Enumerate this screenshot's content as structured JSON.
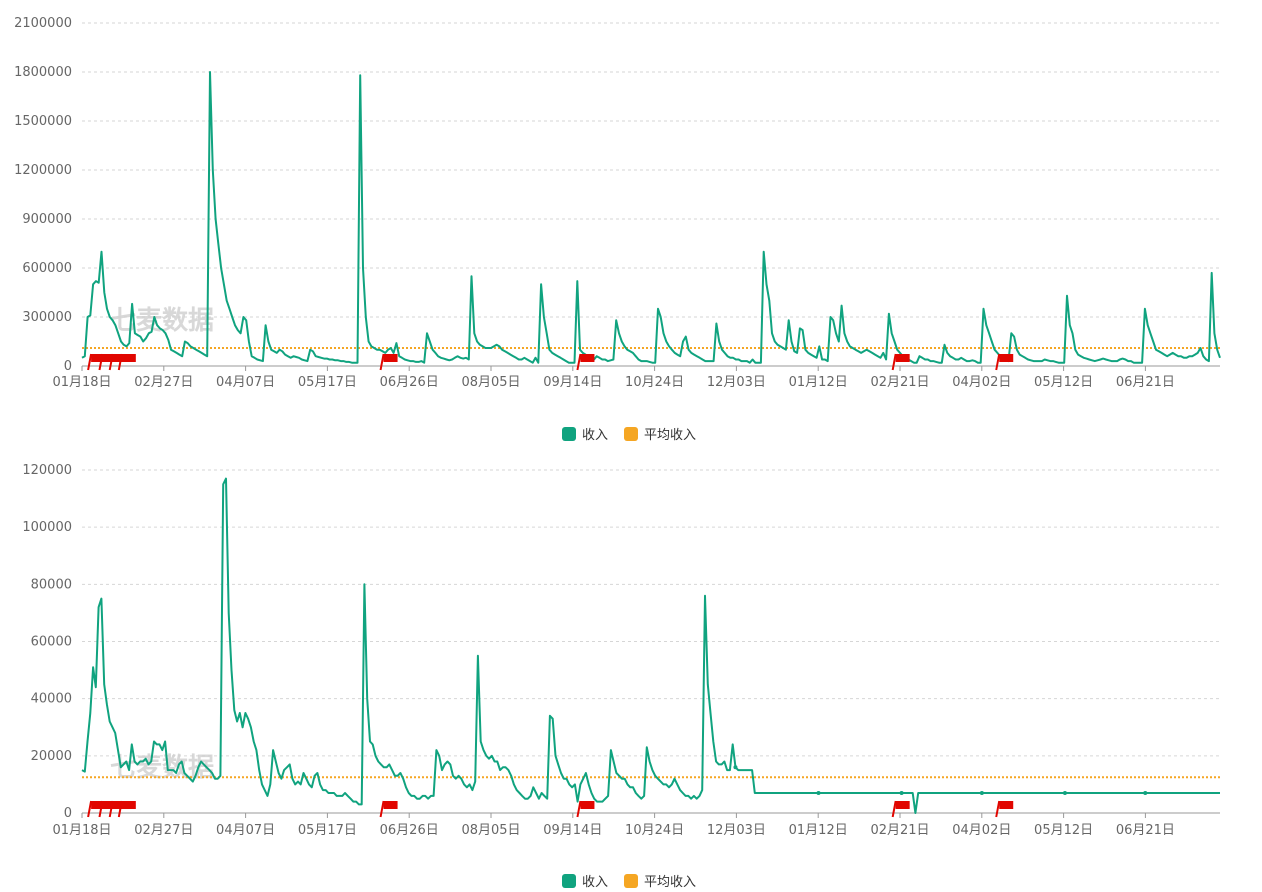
{
  "legend": {
    "income_label": "收入",
    "avg_label": "平均收入",
    "income_color": "#10A37F",
    "avg_color": "#F5A623"
  },
  "watermark": "七麦数据",
  "chart_data": [
    {
      "type": "line",
      "x_ticks": [
        "01月18日",
        "02月27日",
        "04月07日",
        "05月17日",
        "06月26日",
        "08月05日",
        "09月14日",
        "10月24日",
        "12月03日",
        "01月12日",
        "02月21日",
        "04月02日",
        "05月12日",
        "06月21日"
      ],
      "y_ticks": [
        0,
        300000,
        600000,
        900000,
        1200000,
        1500000,
        1800000,
        2100000
      ],
      "ylim": [
        0,
        2100000
      ],
      "series": [
        {
          "name": "收入",
          "values": [
            50000,
            60000,
            300000,
            310000,
            500000,
            520000,
            510000,
            700000,
            450000,
            350000,
            300000,
            280000,
            250000,
            200000,
            150000,
            130000,
            120000,
            140000,
            380000,
            200000,
            190000,
            180000,
            150000,
            170000,
            200000,
            210000,
            300000,
            250000,
            230000,
            220000,
            200000,
            160000,
            100000,
            90000,
            80000,
            70000,
            60000,
            150000,
            140000,
            120000,
            110000,
            100000,
            90000,
            80000,
            70000,
            60000,
            1800000,
            1200000,
            900000,
            750000,
            600000,
            500000,
            400000,
            350000,
            300000,
            250000,
            220000,
            200000,
            300000,
            280000,
            150000,
            60000,
            50000,
            40000,
            35000,
            30000,
            250000,
            150000,
            100000,
            90000,
            80000,
            100000,
            90000,
            70000,
            60000,
            50000,
            60000,
            55000,
            50000,
            40000,
            35000,
            30000,
            100000,
            90000,
            60000,
            55000,
            50000,
            45000,
            45000,
            40000,
            40000,
            35000,
            35000,
            30000,
            30000,
            25000,
            25000,
            20000,
            20000,
            20000,
            1780000,
            600000,
            300000,
            150000,
            120000,
            110000,
            100000,
            100000,
            90000,
            80000,
            100000,
            110000,
            80000,
            140000,
            60000,
            50000,
            40000,
            35000,
            30000,
            30000,
            25000,
            25000,
            30000,
            20000,
            200000,
            150000,
            100000,
            80000,
            60000,
            50000,
            45000,
            40000,
            35000,
            40000,
            50000,
            60000,
            50000,
            45000,
            50000,
            40000,
            550000,
            200000,
            150000,
            130000,
            120000,
            110000,
            110000,
            110000,
            120000,
            130000,
            120000,
            100000,
            90000,
            80000,
            70000,
            60000,
            50000,
            40000,
            40000,
            50000,
            40000,
            30000,
            20000,
            50000,
            20000,
            500000,
            300000,
            200000,
            100000,
            80000,
            70000,
            60000,
            50000,
            40000,
            30000,
            20000,
            20000,
            20000,
            520000,
            100000,
            80000,
            70000,
            60000,
            50000,
            40000,
            60000,
            50000,
            40000,
            40000,
            30000,
            35000,
            40000,
            280000,
            200000,
            150000,
            120000,
            100000,
            90000,
            80000,
            60000,
            40000,
            30000,
            30000,
            30000,
            25000,
            20000,
            20000,
            350000,
            300000,
            200000,
            150000,
            120000,
            100000,
            80000,
            70000,
            60000,
            150000,
            180000,
            100000,
            80000,
            70000,
            60000,
            50000,
            40000,
            30000,
            30000,
            30000,
            30000,
            260000,
            150000,
            100000,
            80000,
            60000,
            50000,
            50000,
            40000,
            40000,
            30000,
            30000,
            30000,
            20000,
            40000,
            20000,
            20000,
            20000,
            700000,
            500000,
            400000,
            200000,
            150000,
            130000,
            120000,
            110000,
            100000,
            280000,
            150000,
            90000,
            80000,
            230000,
            220000,
            100000,
            80000,
            70000,
            60000,
            50000,
            120000,
            40000,
            40000,
            30000,
            300000,
            280000,
            200000,
            150000,
            370000,
            200000,
            150000,
            120000,
            110000,
            100000,
            90000,
            80000,
            90000,
            100000,
            90000,
            80000,
            70000,
            60000,
            50000,
            80000,
            40000,
            320000,
            200000,
            150000,
            100000,
            80000,
            60000,
            50000,
            40000,
            30000,
            20000,
            20000,
            60000,
            50000,
            40000,
            40000,
            30000,
            30000,
            25000,
            20000,
            20000,
            130000,
            80000,
            60000,
            50000,
            40000,
            40000,
            50000,
            40000,
            30000,
            30000,
            35000,
            30000,
            20000,
            20000,
            350000,
            250000,
            200000,
            150000,
            100000,
            80000,
            60000,
            50000,
            40000,
            30000,
            200000,
            180000,
            100000,
            70000,
            60000,
            50000,
            40000,
            35000,
            30000,
            30000,
            30000,
            30000,
            40000,
            35000,
            30000,
            30000,
            25000,
            20000,
            20000,
            20000,
            430000,
            250000,
            200000,
            100000,
            70000,
            60000,
            50000,
            45000,
            40000,
            35000,
            30000,
            35000,
            40000,
            45000,
            40000,
            35000,
            30000,
            30000,
            30000,
            40000,
            45000,
            40000,
            30000,
            30000,
            20000,
            20000,
            20000,
            20000,
            350000,
            250000,
            200000,
            150000,
            100000,
            90000,
            80000,
            70000,
            60000,
            70000,
            80000,
            70000,
            60000,
            60000,
            50000,
            50000,
            60000,
            60000,
            70000,
            80000,
            110000,
            60000,
            40000,
            30000,
            570000,
            200000,
            100000,
            50000
          ]
        },
        {
          "name": "平均收入",
          "values": [
            110000
          ]
        }
      ]
    },
    {
      "type": "line",
      "x_ticks": [
        "01月18日",
        "02月27日",
        "04月07日",
        "05月17日",
        "06月26日",
        "08月05日",
        "09月14日",
        "10月24日",
        "12月03日",
        "01月12日",
        "02月21日",
        "04月02日",
        "05月12日",
        "06月21日"
      ],
      "y_ticks": [
        0,
        20000,
        40000,
        60000,
        80000,
        100000,
        120000
      ],
      "ylim": [
        0,
        120000
      ],
      "series": [
        {
          "name": "收入",
          "values": [
            15000,
            14500,
            25000,
            35000,
            51000,
            44000,
            72000,
            75000,
            45000,
            38000,
            32000,
            30000,
            28000,
            22000,
            16000,
            17000,
            18000,
            15000,
            24000,
            18000,
            17000,
            18000,
            18000,
            19000,
            17000,
            18000,
            25000,
            24000,
            24000,
            22000,
            25000,
            15000,
            15000,
            15000,
            14000,
            17000,
            18000,
            14000,
            13000,
            12000,
            11000,
            13000,
            16000,
            18000,
            17000,
            16000,
            15000,
            14000,
            12000,
            12000,
            13000,
            115000,
            117000,
            70000,
            50000,
            36000,
            32000,
            35000,
            30000,
            35000,
            33000,
            30000,
            25000,
            22000,
            15000,
            10000,
            8000,
            6000,
            10000,
            22000,
            18000,
            14000,
            12000,
            15000,
            16000,
            17000,
            12000,
            10000,
            11000,
            10000,
            14000,
            12000,
            10000,
            9000,
            13000,
            14000,
            10000,
            8000,
            8000,
            7000,
            7000,
            7000,
            6000,
            6000,
            6000,
            7000,
            6000,
            5000,
            4000,
            4000,
            3000,
            3000,
            80000,
            40000,
            25000,
            24000,
            20000,
            18000,
            17000,
            16000,
            16000,
            17000,
            15000,
            13000,
            13000,
            14000,
            12000,
            9000,
            7000,
            6000,
            6000,
            5000,
            5000,
            6000,
            6000,
            5000,
            6000,
            6000,
            22000,
            20000,
            15000,
            17000,
            18000,
            17000,
            13000,
            12000,
            13000,
            12000,
            10000,
            9000,
            10000,
            8000,
            11000,
            55000,
            25000,
            22000,
            20000,
            19000,
            20000,
            18000,
            18000,
            15000,
            16000,
            16000,
            15000,
            13000,
            10000,
            8000,
            7000,
            6000,
            5000,
            5000,
            6000,
            9000,
            7000,
            5000,
            7000,
            6000,
            5000,
            34000,
            33000,
            20000,
            17000,
            14000,
            12000,
            12000,
            10000,
            9000,
            10000,
            4000,
            10000,
            12000,
            14000,
            10000,
            7000,
            5000,
            4000,
            4000,
            4000,
            5000,
            6000,
            22000,
            18000,
            14000,
            13000,
            12000,
            12000,
            10000,
            9000,
            9000,
            7000,
            6000,
            5000,
            6000,
            23000,
            18000,
            15000,
            13000,
            12000,
            11000,
            10000,
            10000,
            9000,
            10000,
            12000,
            10000,
            8000,
            7000,
            6000,
            6000,
            5000,
            6000,
            5000,
            6000,
            8000,
            76000,
            45000,
            35000,
            25000,
            18000,
            17000,
            17000,
            18000,
            15000,
            15000,
            24000,
            16000,
            15000,
            15000,
            15000,
            15000,
            15000,
            15000,
            7000,
            7000,
            7000,
            7000,
            7000,
            7000,
            7000,
            7000,
            7000,
            7000,
            7000,
            7000,
            7000,
            7000,
            7000,
            7000,
            7000,
            7000,
            7000,
            7000,
            7000,
            7000,
            7000,
            7000,
            7000,
            7000,
            7000,
            7000,
            7000,
            7000,
            7000,
            7000,
            7000,
            7000,
            7000,
            7000,
            7000,
            7000,
            7000,
            7000,
            7000,
            7000,
            7000,
            7000,
            7000,
            7000,
            7000,
            7000,
            7000,
            7000,
            7000,
            7000,
            7000,
            7000,
            7000,
            7000,
            7000,
            7000,
            0,
            7000,
            7000,
            7000,
            7000,
            7000,
            7000,
            7000,
            7000,
            7000,
            7000,
            7000,
            7000,
            7000,
            7000,
            7000,
            7000,
            7000,
            7000,
            7000,
            7000,
            7000,
            7000,
            7000,
            7000,
            7000,
            7000,
            7000,
            7000,
            7000,
            7000,
            7000,
            7000,
            7000,
            7000,
            7000,
            7000,
            7000,
            7000,
            7000,
            7000,
            7000,
            7000,
            7000,
            7000,
            7000,
            7000,
            7000,
            7000,
            7000,
            7000,
            7000,
            7000,
            7000,
            7000,
            7000,
            7000,
            7000,
            7000,
            7000,
            7000,
            7000,
            7000,
            7000,
            7000,
            7000,
            7000,
            7000,
            7000,
            7000,
            7000,
            7000,
            7000,
            7000,
            7000,
            7000,
            7000,
            7000,
            7000,
            7000,
            7000,
            7000,
            7000,
            7000,
            7000,
            7000,
            7000,
            7000,
            7000,
            7000,
            7000,
            7000,
            7000,
            7000,
            7000,
            7000,
            7000,
            7000,
            7000,
            7000,
            7000,
            7000,
            7000,
            7000,
            7000,
            7000,
            7000,
            7000,
            7000,
            7000,
            7000
          ]
        },
        {
          "name": "平均收入",
          "values": [
            12500
          ]
        }
      ]
    }
  ]
}
